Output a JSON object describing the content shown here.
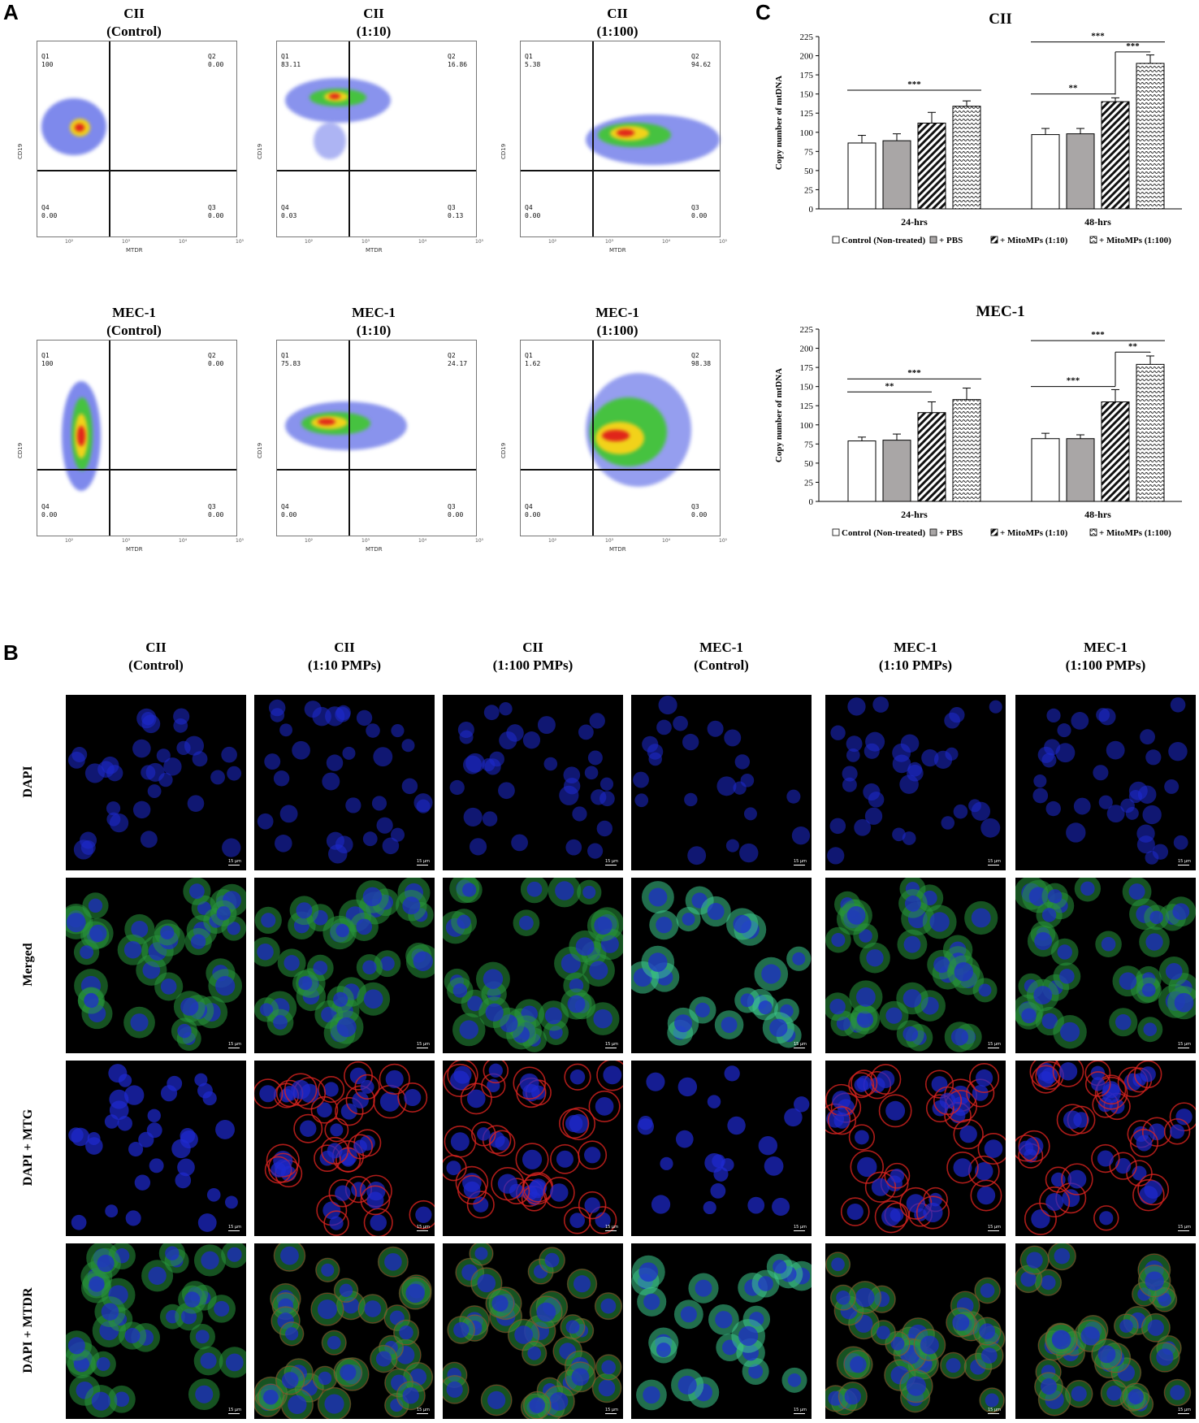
{
  "panels": {
    "a": "A",
    "b": "B",
    "c": "C"
  },
  "flow_axes": {
    "x_label": "MTDR",
    "y_label": "CD19",
    "ticks": [
      "10²",
      "10³",
      "10⁴",
      "10⁵"
    ]
  },
  "flow_plots": [
    {
      "line1": "CII",
      "line2": "(Control)",
      "q1": "Q1",
      "q1v": "100",
      "q2": "Q2",
      "q2v": "0.00",
      "q3": "Q3",
      "q3v": "0.00",
      "q4": "Q4",
      "q4v": "0.00"
    },
    {
      "line1": "CII",
      "line2": "(1:10)",
      "q1": "Q1",
      "q1v": "83.11",
      "q2": "Q2",
      "q2v": "16.86",
      "q3": "Q3",
      "q3v": "0.13",
      "q4": "Q4",
      "q4v": "0.03"
    },
    {
      "line1": "CII",
      "line2": "(1:100)",
      "q1": "Q1",
      "q1v": "5.38",
      "q2": "Q2",
      "q2v": "94.62",
      "q3": "Q3",
      "q3v": "0.00",
      "q4": "Q4",
      "q4v": "0.00"
    },
    {
      "line1": "MEC-1",
      "line2": "(Control)",
      "q1": "Q1",
      "q1v": "100",
      "q2": "Q2",
      "q2v": "0.00",
      "q3": "Q3",
      "q3v": "0.00",
      "q4": "Q4",
      "q4v": "0.00"
    },
    {
      "line1": "MEC-1",
      "line2": "(1:10)",
      "q1": "Q1",
      "q1v": "75.83",
      "q2": "Q2",
      "q2v": "24.17",
      "q3": "Q3",
      "q3v": "0.00",
      "q4": "Q4",
      "q4v": "0.00"
    },
    {
      "line1": "MEC-1",
      "line2": "(1:100)",
      "q1": "Q1",
      "q1v": "1.62",
      "q2": "Q2",
      "q2v": "98.38",
      "q3": "Q3",
      "q3v": "0.00",
      "q4": "Q4",
      "q4v": "0.00"
    }
  ],
  "micro_columns": [
    {
      "line1": "CII",
      "line2": "(Control)"
    },
    {
      "line1": "CII",
      "line2": "(1:10 PMPs)"
    },
    {
      "line1": "CII",
      "line2": "(1:100 PMPs)"
    },
    {
      "line1": "MEC-1",
      "line2": "(Control)"
    },
    {
      "line1": "MEC-1",
      "line2": "(1:10 PMPs)"
    },
    {
      "line1": "MEC-1",
      "line2": "(1:100 PMPs)"
    }
  ],
  "micro_rows": [
    "DAPI",
    "Merged",
    "DAPI + MTG",
    "DAPI + MTDR"
  ],
  "scale_label": "15 µm",
  "colors": {
    "dapi": "#1e2ad0",
    "mtg": "#2fae45",
    "mtdr": "#d8231f"
  },
  "chart_data": [
    {
      "type": "bar",
      "title": "CII",
      "ylabel": "Copy number of mtDNA",
      "ylim": [
        0,
        225
      ],
      "yticks": [
        0,
        25,
        50,
        75,
        100,
        125,
        150,
        175,
        200,
        225
      ],
      "categories": [
        "24-hrs",
        "48-hrs"
      ],
      "series": [
        {
          "name": "Control (Non-treated)",
          "values": [
            86,
            97
          ],
          "errors": [
            10,
            8
          ]
        },
        {
          "name": "+ PBS",
          "values": [
            89,
            98
          ],
          "errors": [
            9,
            7
          ]
        },
        {
          "name": "+ MitoMPs (1:10)",
          "values": [
            112,
            140
          ],
          "errors": [
            14,
            5
          ]
        },
        {
          "name": "+ MitoMPs (1:100)",
          "values": [
            134,
            190
          ],
          "errors": [
            7,
            11
          ]
        }
      ],
      "significance": [
        {
          "group": 0,
          "from": 0,
          "to": 3,
          "label": "***"
        },
        {
          "group": 1,
          "from": 0,
          "to": 3,
          "label": "***"
        },
        {
          "group": 1,
          "from": 0,
          "to": 2,
          "label": "**"
        },
        {
          "group": 1,
          "from": 2,
          "to": 3,
          "label": "***"
        }
      ]
    },
    {
      "type": "bar",
      "title": "MEC-1",
      "ylabel": "Copy number of mtDNA",
      "ylim": [
        0,
        225
      ],
      "yticks": [
        0,
        25,
        50,
        75,
        100,
        125,
        150,
        175,
        200,
        225
      ],
      "categories": [
        "24-hrs",
        "48-hrs"
      ],
      "series": [
        {
          "name": "Control (Non-treated)",
          "values": [
            79,
            82
          ],
          "errors": [
            5,
            7
          ]
        },
        {
          "name": "+ PBS",
          "values": [
            80,
            82
          ],
          "errors": [
            8,
            5
          ]
        },
        {
          "name": "+ MitoMPs (1:10)",
          "values": [
            116,
            130
          ],
          "errors": [
            14,
            16
          ]
        },
        {
          "name": "+ MitoMPs (1:100)",
          "values": [
            133,
            179
          ],
          "errors": [
            15,
            11
          ]
        }
      ],
      "significance": [
        {
          "group": 0,
          "from": 0,
          "to": 3,
          "label": "***"
        },
        {
          "group": 0,
          "from": 0,
          "to": 2,
          "label": "**"
        },
        {
          "group": 1,
          "from": 0,
          "to": 3,
          "label": "***"
        },
        {
          "group": 1,
          "from": 0,
          "to": 2,
          "label": "***"
        },
        {
          "group": 1,
          "from": 2,
          "to": 3,
          "label": "**"
        }
      ]
    }
  ]
}
